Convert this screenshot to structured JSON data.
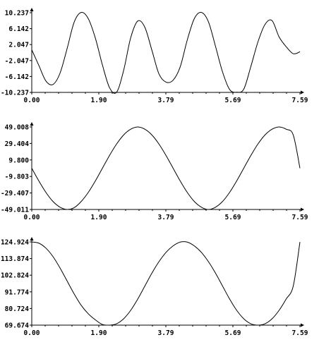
{
  "chart_data": [
    {
      "type": "line",
      "title": "",
      "xlabel": "",
      "ylabel": "",
      "xlim": [
        0.0,
        7.59
      ],
      "ylim": [
        -10.237,
        10.237
      ],
      "x_ticks": [
        "0.00",
        "1.90",
        "3.79",
        "5.69",
        "7.59"
      ],
      "y_ticks": [
        "10.237",
        "6.142",
        "2.047",
        "-2.047",
        "-6.142",
        "-10.237"
      ],
      "grid": false,
      "series": [
        {
          "x": [
            0,
            0.2,
            0.4,
            0.6,
            0.8,
            1.0,
            1.2,
            1.4,
            1.6,
            1.8,
            2.0,
            2.2,
            2.4,
            2.6,
            2.8,
            3.0,
            3.2,
            3.4,
            3.6,
            3.8,
            4.0,
            4.2,
            4.4,
            4.6,
            4.8,
            5.0,
            5.2,
            5.4,
            5.6,
            5.8,
            6.0,
            6.2,
            6.4,
            6.6,
            6.8,
            7.0,
            7.2,
            7.4,
            7.59
          ],
          "y": [
            0.7,
            -3.3,
            -7.3,
            -8.2,
            -5.3,
            1.0,
            7.8,
            10.3,
            8.7,
            3.7,
            -3.2,
            -9.0,
            -10.2,
            -4.6,
            3.8,
            8.1,
            6.5,
            0.6,
            -5.5,
            -7.6,
            -7.1,
            -3.7,
            3.2,
            8.7,
            10.3,
            7.9,
            1.6,
            -5.0,
            -9.5,
            -10.2,
            -9.4,
            -3.6,
            2.7,
            7.2,
            8.2,
            4.0,
            1.5,
            -0.3,
            0.2
          ]
        }
      ]
    },
    {
      "type": "line",
      "title": "",
      "xlabel": "",
      "ylabel": "",
      "xlim": [
        0.0,
        7.59
      ],
      "ylim": [
        -49.011,
        49.008
      ],
      "x_ticks": [
        "0.00",
        "1.90",
        "3.79",
        "5.69",
        "7.59"
      ],
      "y_ticks": [
        "49.008",
        "29.404",
        "9.800",
        "-9.803",
        "-29.407",
        "-49.011"
      ],
      "grid": false,
      "series": [
        {
          "x": [
            0,
            0.2,
            0.4,
            0.6,
            0.8,
            1.0,
            1.2,
            1.4,
            1.6,
            1.8,
            2.0,
            2.2,
            2.4,
            2.6,
            2.8,
            3.0,
            3.2,
            3.4,
            3.6,
            3.8,
            4.0,
            4.2,
            4.4,
            4.6,
            4.8,
            5.0,
            5.2,
            5.4,
            5.6,
            5.8,
            6.0,
            6.2,
            6.4,
            6.6,
            6.8,
            7.0,
            7.2,
            7.4,
            7.59
          ],
          "y": [
            0.0,
            -15.1,
            -28.7,
            -39.5,
            -46.3,
            -49.0,
            -46.9,
            -39.5,
            -28.7,
            -15.1,
            0.0,
            15.1,
            28.7,
            39.5,
            46.3,
            49.0,
            46.3,
            39.5,
            28.7,
            15.1,
            0.0,
            -15.1,
            -28.7,
            -39.5,
            -46.3,
            -49.0,
            -46.3,
            -39.5,
            -28.7,
            -15.1,
            0.0,
            15.1,
            28.7,
            39.5,
            46.3,
            49.0,
            46.3,
            39.5,
            0.0
          ]
        }
      ]
    },
    {
      "type": "line",
      "title": "",
      "xlabel": "",
      "ylabel": "",
      "xlim": [
        0.0,
        7.59
      ],
      "ylim": [
        69.674,
        124.924
      ],
      "x_ticks": [
        "0.00",
        "1.90",
        "3.79",
        "5.69",
        "7.59"
      ],
      "y_ticks": [
        "124.924",
        "113.874",
        "102.824",
        "91.774",
        "80.724",
        "69.674"
      ],
      "grid": false,
      "series": [
        {
          "x": [
            0,
            0.2,
            0.4,
            0.6,
            0.8,
            1.0,
            1.2,
            1.4,
            1.6,
            1.8,
            2.0,
            2.2,
            2.4,
            2.6,
            2.8,
            3.0,
            3.2,
            3.4,
            3.6,
            3.8,
            4.0,
            4.2,
            4.4,
            4.6,
            4.8,
            5.0,
            5.2,
            5.4,
            5.6,
            5.8,
            6.0,
            6.2,
            6.4,
            6.6,
            6.8,
            7.0,
            7.2,
            7.4,
            7.59
          ],
          "y": [
            124.9,
            124.1,
            120.8,
            115.2,
            107.6,
            99.0,
            90.4,
            82.8,
            77.2,
            73.2,
            70.1,
            69.7,
            70.6,
            73.9,
            79.5,
            87.0,
            95.6,
            104.2,
            111.8,
            118.0,
            122.3,
            124.8,
            124.8,
            122.3,
            118.0,
            111.8,
            104.2,
            95.6,
            87.0,
            79.5,
            73.9,
            70.6,
            69.7,
            70.6,
            73.9,
            79.5,
            87.0,
            95.6,
            124.9
          ]
        }
      ]
    }
  ]
}
